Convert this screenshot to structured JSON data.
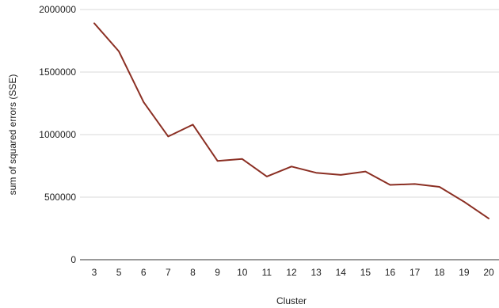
{
  "chart_data": {
    "type": "line",
    "title": "",
    "xlabel": "Cluster",
    "ylabel": "sum of squared errors (SSE)",
    "categories": [
      "3",
      "5",
      "6",
      "7",
      "8",
      "9",
      "10",
      "11",
      "12",
      "13",
      "14",
      "15",
      "16",
      "17",
      "18",
      "19",
      "20"
    ],
    "series": [
      {
        "values": [
          1890000,
          1665000,
          1260000,
          985000,
          1080000,
          790000,
          805000,
          665000,
          745000,
          695000,
          678000,
          705000,
          598000,
          605000,
          582000,
          463000,
          330000
        ],
        "color": "#8b2f23"
      }
    ],
    "ylim": [
      0,
      2000000
    ],
    "yticks": [
      0,
      500000,
      1000000,
      1500000,
      2000000
    ],
    "ytick_labels": [
      "0",
      "500000",
      "1000000",
      "1500000",
      "2000000"
    ],
    "grid": true,
    "legend": "none"
  }
}
